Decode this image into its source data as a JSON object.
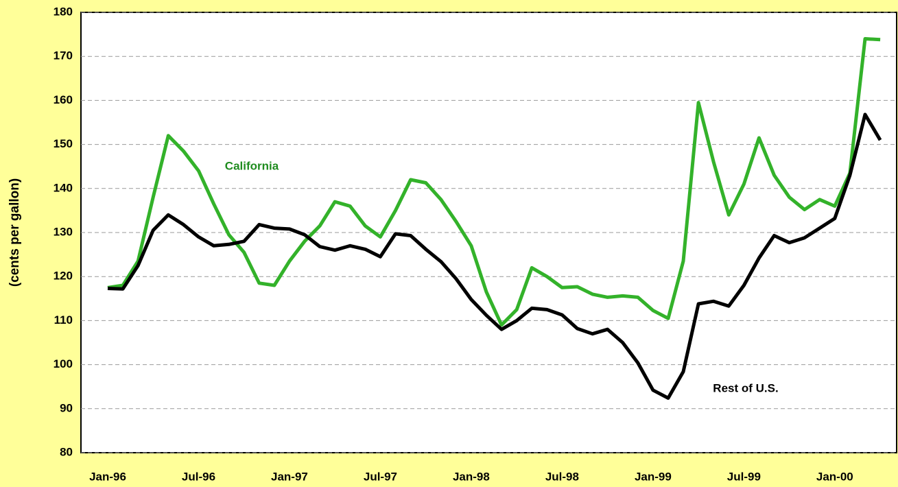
{
  "chart_data": {
    "type": "line",
    "y_label": "(cents per gallon)",
    "categories": [
      "Jan-96",
      null,
      null,
      null,
      null,
      null,
      "Jul-96",
      null,
      null,
      null,
      null,
      null,
      "Jan-97",
      null,
      null,
      null,
      null,
      null,
      "Jul-97",
      null,
      null,
      null,
      null,
      null,
      "Jan-98",
      null,
      null,
      null,
      null,
      null,
      "Jul-98",
      null,
      null,
      null,
      null,
      null,
      "Jan-99",
      null,
      null,
      null,
      null,
      null,
      "Jul-99",
      null,
      null,
      null,
      null,
      null,
      "Jan-00",
      null,
      null,
      null
    ],
    "series": [
      {
        "name": "California",
        "color": "#33b22a",
        "label_color": "#1f8c1f",
        "values": [
          117.5,
          118,
          123.5,
          138,
          152,
          148.5,
          144,
          136.5,
          129.5,
          125.5,
          118.5,
          118,
          123.5,
          128,
          131.5,
          137,
          136,
          131.5,
          129,
          135,
          142,
          141.3,
          137.5,
          132.5,
          127,
          116.5,
          109,
          112.5,
          122,
          120,
          117.5,
          117.7,
          116,
          115.3,
          115.6,
          115.3,
          112.3,
          110.5,
          123.5,
          159.5,
          146,
          134,
          141,
          151.5,
          143,
          138,
          135.2,
          137.5,
          136,
          143.5,
          174,
          173.8
        ]
      },
      {
        "name": "Rest of U.S.",
        "color": "#000000",
        "label_color": "#000000",
        "values": [
          117.3,
          117.2,
          122.5,
          130.5,
          134,
          131.8,
          129,
          127,
          127.3,
          128,
          131.8,
          131,
          130.8,
          129.5,
          126.8,
          126,
          127,
          126.2,
          124.5,
          129.7,
          129.3,
          126.2,
          123.4,
          119.5,
          114.8,
          111.2,
          108,
          110,
          112.8,
          112.5,
          111.3,
          108.2,
          107,
          108,
          105,
          100.4,
          94.2,
          92.4,
          98.4,
          113.8,
          114.4,
          113.3,
          118,
          124.2,
          129.3,
          127.7,
          128.8,
          131,
          133.2,
          143,
          156.8,
          151
        ]
      }
    ],
    "ylim": [
      80,
      180
    ],
    "yticks": [
      80,
      90,
      100,
      110,
      120,
      130,
      140,
      150,
      160,
      170,
      180
    ],
    "grid": true
  }
}
